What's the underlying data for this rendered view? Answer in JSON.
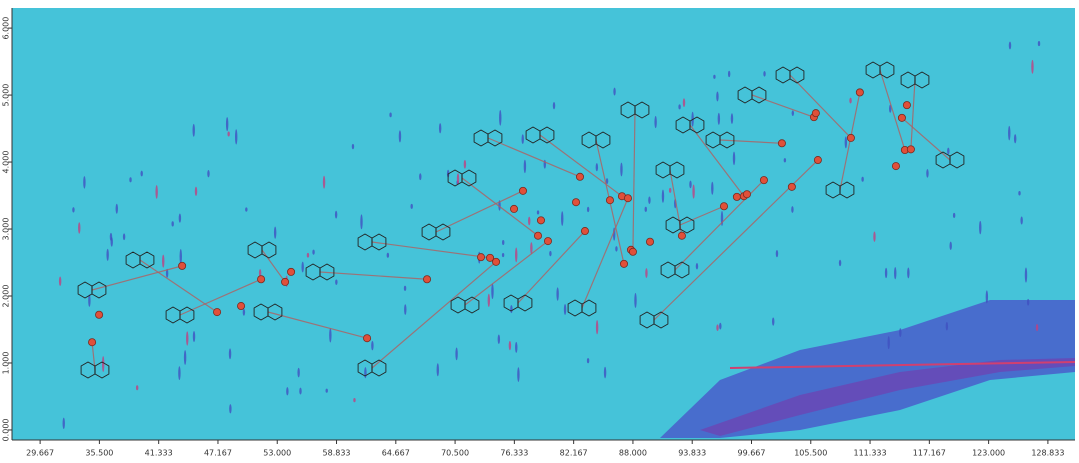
{
  "chart_data": {
    "type": "scatter",
    "x": [
      34.78,
      35.47,
      43.64,
      47.08,
      49.44,
      51.41,
      53.77,
      54.36,
      61.84,
      67.74,
      73.05,
      73.94,
      74.53,
      76.3,
      77.18,
      78.95,
      78.66,
      79.64,
      82.4,
      82.79,
      83.28,
      85.74,
      86.92,
      87.51,
      87.81,
      87.12,
      88.0,
      89.68,
      92.82,
      96.96,
      98.23,
      98.92,
      99.22,
      100.89,
      102.66,
      103.64,
      106.2,
      105.81,
      106.0,
      109.45,
      110.33,
      113.88,
      114.76,
      115.35,
      114.96,
      114.47
    ],
    "values": [
      1.31,
      1.72,
      2.45,
      1.76,
      1.85,
      2.25,
      2.21,
      2.36,
      1.37,
      2.25,
      2.58,
      2.57,
      2.51,
      3.3,
      3.57,
      3.13,
      2.9,
      2.82,
      3.4,
      3.78,
      2.97,
      3.43,
      3.49,
      3.46,
      2.69,
      2.48,
      2.66,
      2.81,
      2.9,
      3.34,
      3.48,
      3.49,
      3.52,
      3.73,
      4.28,
      3.63,
      4.03,
      4.67,
      4.73,
      4.36,
      5.04,
      3.94,
      4.18,
      4.19,
      4.85,
      4.66
    ],
    "color": "#e0503a",
    "background": "#45c3d9",
    "xlim": [
      26.9,
      131.5
    ],
    "ylim": [
      -0.15,
      6.3
    ],
    "xticks": [
      29.667,
      35.5,
      41.333,
      47.167,
      53,
      58.833,
      64.667,
      70.5,
      76.333,
      82.167,
      88,
      93.833,
      99.667,
      105.5,
      111.333,
      117.167,
      123,
      128.833
    ],
    "xtick_labels": [
      "29.667",
      "35.500",
      "41.333",
      "47.167",
      "53.000",
      "58.833",
      "64.667",
      "70.500",
      "76.333",
      "82.167",
      "88.000",
      "93.833",
      "99.667",
      "105.500",
      "111.333",
      "117.167",
      "123.000",
      "128.833"
    ],
    "yticks": [
      {
        "value": 0,
        "label": "0.000"
      },
      {
        "value": 1,
        "label": "1.000"
      },
      {
        "value": 2,
        "label": "2.000"
      },
      {
        "value": 3,
        "label": "3.000"
      },
      {
        "value": 4,
        "label": "4.000"
      },
      {
        "value": 5,
        "label": "5.000"
      },
      {
        "value": 6,
        "label": "6.000"
      }
    ]
  }
}
